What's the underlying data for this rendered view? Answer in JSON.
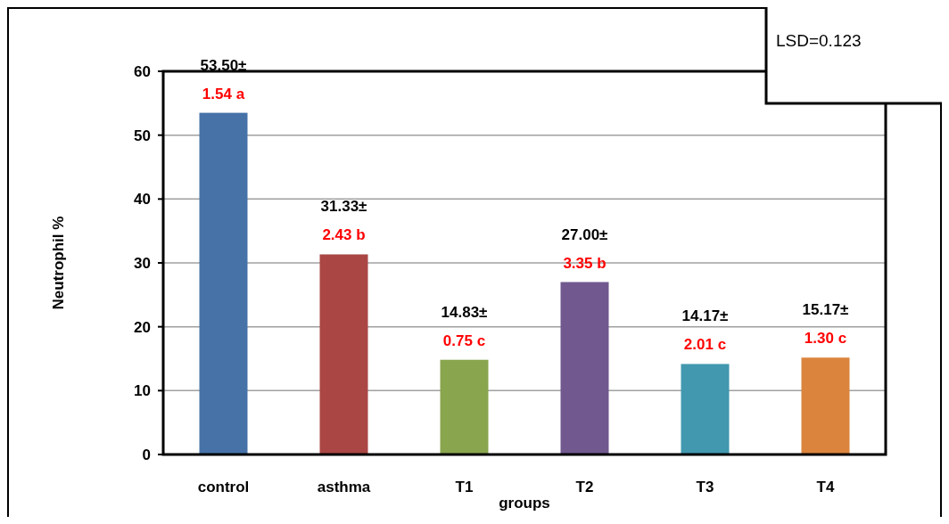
{
  "chart_data": {
    "type": "bar",
    "xlabel": "groups",
    "ylabel": "Neutrophil %",
    "categories": [
      "control",
      "asthma",
      "T1",
      "T2",
      "T3",
      "T4"
    ],
    "values": [
      53.5,
      31.33,
      14.83,
      27.0,
      14.17,
      15.17
    ],
    "colors": [
      "#4672a8",
      "#aa4644",
      "#89a54e",
      "#71588f",
      "#4198af",
      "#db843d"
    ],
    "value_labels": [
      "53.50±",
      "31.33±",
      "14.83±",
      "27.00±",
      "14.17±",
      "15.17±"
    ],
    "annotations": [
      {
        "text": "1.54 a",
        "x": "control",
        "y": 53.5
      },
      {
        "text": "2.43 b",
        "x": "asthma",
        "y": 31.33
      },
      {
        "text": "0.75 c",
        "x": "T1",
        "y": 14.83
      },
      {
        "text": "3.35 b",
        "x": "T2",
        "y": 27.0
      },
      {
        "text": "2.01 c",
        "x": "T3",
        "y": 14.17
      },
      {
        "text": "1.30 c",
        "x": "T4",
        "y": 15.17
      },
      "LSD=0.123"
    ],
    "ylim": [
      0,
      60
    ],
    "yticks": [
      0,
      10,
      20,
      30,
      40,
      50,
      60
    ],
    "grid": "y"
  }
}
